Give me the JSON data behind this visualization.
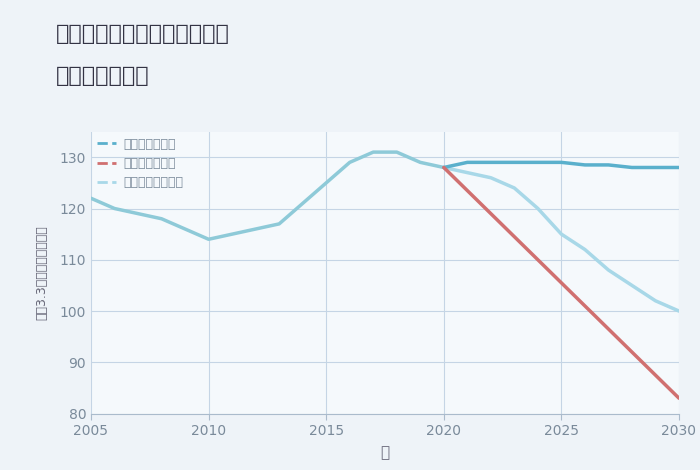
{
  "title_line1": "兵庫県西宮市甲子園砂田町の",
  "title_line2": "土地の価格推移",
  "xlabel": "年",
  "ylabel": "坪（3.3㎡）単価（万円）",
  "ylim": [
    80,
    135
  ],
  "xlim": [
    2005,
    2030
  ],
  "yticks": [
    80,
    90,
    100,
    110,
    120,
    130
  ],
  "xticks": [
    2005,
    2010,
    2015,
    2020,
    2025,
    2030
  ],
  "fig_bg_color": "#eef3f8",
  "plot_bg_color": "#f5f9fc",
  "grid_color": "#c5d5e5",
  "historical": {
    "years": [
      2005,
      2006,
      2007,
      2008,
      2009,
      2010,
      2011,
      2012,
      2013,
      2014,
      2015,
      2016,
      2017,
      2018,
      2019,
      2020
    ],
    "values": [
      122,
      120,
      119,
      118,
      116,
      114,
      115,
      116,
      117,
      121,
      125,
      129,
      131,
      131,
      129,
      128
    ],
    "color": "#8ecad8",
    "linewidth": 2.5
  },
  "good": {
    "years": [
      2020,
      2021,
      2022,
      2023,
      2024,
      2025,
      2026,
      2027,
      2028,
      2029,
      2030
    ],
    "values": [
      128,
      129,
      129,
      129,
      129,
      129,
      128.5,
      128.5,
      128,
      128,
      128
    ],
    "color": "#5ab0cc",
    "linewidth": 2.5,
    "label": "グッドシナリオ"
  },
  "bad": {
    "years": [
      2020,
      2030
    ],
    "values": [
      128,
      83
    ],
    "color": "#d07070",
    "linewidth": 2.5,
    "label": "バッドシナリオ"
  },
  "normal": {
    "years": [
      2020,
      2021,
      2022,
      2023,
      2024,
      2025,
      2026,
      2027,
      2028,
      2029,
      2030
    ],
    "values": [
      128,
      127,
      126,
      124,
      120,
      115,
      112,
      108,
      105,
      102,
      100
    ],
    "color": "#a8d8e8",
    "linewidth": 2.5,
    "label": "ノーマルシナリオ"
  },
  "tick_color": "#7a8a9a",
  "title_color": "#333344",
  "label_color": "#666677"
}
